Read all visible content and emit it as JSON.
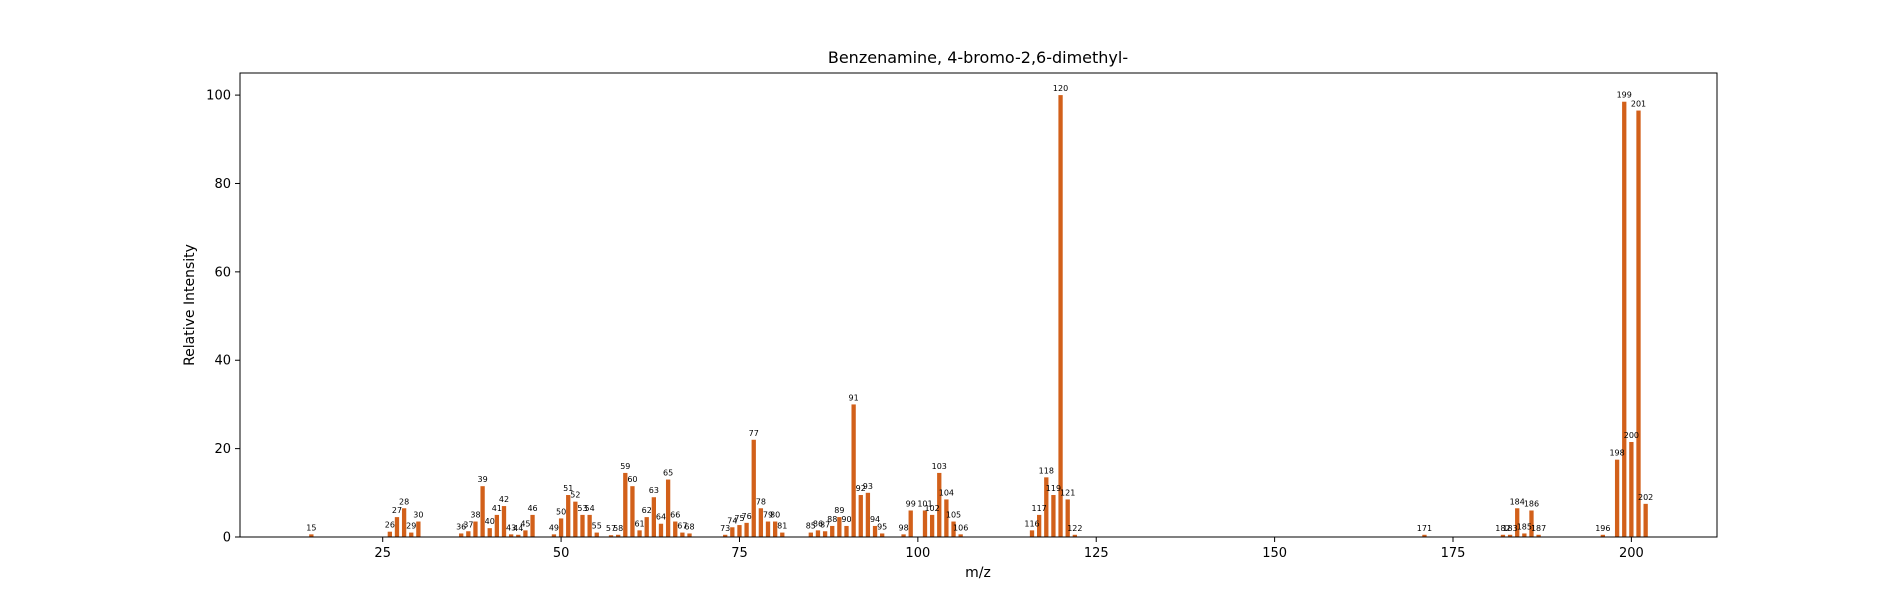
{
  "chart_data": {
    "type": "bar",
    "title": "Benzenamine, 4-bromo-2,6-dimethyl-",
    "xlabel": "m/z",
    "ylabel": "Relative Intensity",
    "xlim": [
      5,
      212
    ],
    "ylim": [
      0,
      105
    ],
    "xticks": [
      25,
      50,
      75,
      100,
      125,
      150,
      175,
      200
    ],
    "yticks": [
      0,
      20,
      40,
      60,
      80,
      100
    ],
    "grid": false,
    "bar_color": "#d2601a",
    "points": [
      {
        "x": 15,
        "y": 0.6
      },
      {
        "x": 26,
        "y": 1.2
      },
      {
        "x": 27,
        "y": 4.5
      },
      {
        "x": 28,
        "y": 6.5
      },
      {
        "x": 29,
        "y": 1.0
      },
      {
        "x": 30,
        "y": 3.5
      },
      {
        "x": 36,
        "y": 0.8
      },
      {
        "x": 37,
        "y": 1.3
      },
      {
        "x": 38,
        "y": 3.5
      },
      {
        "x": 39,
        "y": 11.5
      },
      {
        "x": 40,
        "y": 2.0
      },
      {
        "x": 41,
        "y": 5.0
      },
      {
        "x": 42,
        "y": 7.0
      },
      {
        "x": 43,
        "y": 0.6
      },
      {
        "x": 44,
        "y": 0.5
      },
      {
        "x": 45,
        "y": 1.5
      },
      {
        "x": 46,
        "y": 5.0
      },
      {
        "x": 49,
        "y": 0.6
      },
      {
        "x": 50,
        "y": 4.2
      },
      {
        "x": 51,
        "y": 9.5
      },
      {
        "x": 52,
        "y": 8.0
      },
      {
        "x": 53,
        "y": 5.0
      },
      {
        "x": 54,
        "y": 5.0
      },
      {
        "x": 55,
        "y": 1.0
      },
      {
        "x": 57,
        "y": 0.4
      },
      {
        "x": 58,
        "y": 0.5
      },
      {
        "x": 59,
        "y": 14.5
      },
      {
        "x": 60,
        "y": 11.5
      },
      {
        "x": 61,
        "y": 1.5
      },
      {
        "x": 62,
        "y": 4.5
      },
      {
        "x": 63,
        "y": 9.0
      },
      {
        "x": 64,
        "y": 3.0
      },
      {
        "x": 65,
        "y": 13.0
      },
      {
        "x": 66,
        "y": 3.5
      },
      {
        "x": 67,
        "y": 1.0
      },
      {
        "x": 68,
        "y": 0.8
      },
      {
        "x": 73,
        "y": 0.5
      },
      {
        "x": 74,
        "y": 2.2
      },
      {
        "x": 75,
        "y": 2.7
      },
      {
        "x": 76,
        "y": 3.2
      },
      {
        "x": 77,
        "y": 22.0
      },
      {
        "x": 78,
        "y": 6.5
      },
      {
        "x": 79,
        "y": 3.5
      },
      {
        "x": 80,
        "y": 3.5
      },
      {
        "x": 81,
        "y": 1.0
      },
      {
        "x": 85,
        "y": 1.0
      },
      {
        "x": 86,
        "y": 1.5
      },
      {
        "x": 87,
        "y": 1.3
      },
      {
        "x": 88,
        "y": 2.5
      },
      {
        "x": 89,
        "y": 4.5
      },
      {
        "x": 90,
        "y": 2.5
      },
      {
        "x": 91,
        "y": 30.0
      },
      {
        "x": 92,
        "y": 9.5
      },
      {
        "x": 93,
        "y": 10.0
      },
      {
        "x": 94,
        "y": 2.5
      },
      {
        "x": 95,
        "y": 0.8
      },
      {
        "x": 98,
        "y": 0.6
      },
      {
        "x": 99,
        "y": 6.0
      },
      {
        "x": 101,
        "y": 6.0
      },
      {
        "x": 102,
        "y": 5.0
      },
      {
        "x": 103,
        "y": 14.5
      },
      {
        "x": 104,
        "y": 8.5
      },
      {
        "x": 105,
        "y": 3.5
      },
      {
        "x": 106,
        "y": 0.6
      },
      {
        "x": 116,
        "y": 1.5
      },
      {
        "x": 117,
        "y": 5.0
      },
      {
        "x": 118,
        "y": 13.5
      },
      {
        "x": 119,
        "y": 9.5
      },
      {
        "x": 120,
        "y": 100.0
      },
      {
        "x": 121,
        "y": 8.5
      },
      {
        "x": 122,
        "y": 0.5
      },
      {
        "x": 171,
        "y": 0.5
      },
      {
        "x": 182,
        "y": 0.5
      },
      {
        "x": 183,
        "y": 0.5
      },
      {
        "x": 184,
        "y": 6.5
      },
      {
        "x": 185,
        "y": 0.8
      },
      {
        "x": 186,
        "y": 6.0
      },
      {
        "x": 187,
        "y": 0.5
      },
      {
        "x": 196,
        "y": 0.5
      },
      {
        "x": 198,
        "y": 17.5
      },
      {
        "x": 199,
        "y": 98.5
      },
      {
        "x": 200,
        "y": 21.5
      },
      {
        "x": 201,
        "y": 96.5
      },
      {
        "x": 202,
        "y": 7.5
      }
    ]
  }
}
